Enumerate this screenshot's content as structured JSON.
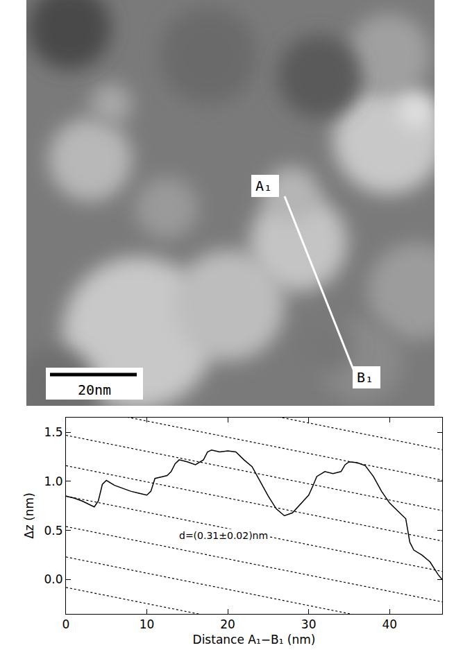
{
  "image": {
    "start_label": "A₁",
    "end_label": "B₁",
    "scale_bar": "20nm"
  },
  "chart_data": {
    "type": "line",
    "xlabel": "Distance A₁−B₁ (nm)",
    "ylabel": "Δz (nm)",
    "xlim": [
      0,
      46.5
    ],
    "ylim": [
      -0.35,
      1.65
    ],
    "xticks": [
      0,
      10,
      20,
      30,
      40
    ],
    "yticks": [
      {
        "value": 0,
        "label": "0.0"
      },
      0.5,
      {
        "value": 1,
        "label": "1.0"
      },
      1.5
    ],
    "grid": false,
    "series": [
      {
        "color": "#000000",
        "line_style": "solid",
        "x": [
          0,
          1,
          2,
          3,
          3.5,
          4,
          4.5,
          5,
          6,
          7,
          8,
          9,
          10,
          10.5,
          11,
          12,
          12.5,
          13,
          13.5,
          14,
          15,
          16,
          17,
          17.5,
          18,
          19,
          20,
          21,
          21.5,
          22,
          23,
          24,
          24.5,
          25,
          26,
          27,
          28,
          29,
          30,
          30.5,
          31,
          32,
          33,
          34,
          34.5,
          35,
          36,
          37,
          38,
          39,
          40,
          41,
          42,
          42.5,
          43,
          44,
          45,
          46,
          46.5
        ],
        "values": [
          0.85,
          0.83,
          0.8,
          0.76,
          0.74,
          0.8,
          0.97,
          1.01,
          0.96,
          0.93,
          0.9,
          0.88,
          0.86,
          0.9,
          1.03,
          1.05,
          1.06,
          1.1,
          1.18,
          1.22,
          1.2,
          1.17,
          1.22,
          1.3,
          1.32,
          1.3,
          1.31,
          1.3,
          1.26,
          1.22,
          1.15,
          1.0,
          0.93,
          0.85,
          0.72,
          0.65,
          0.68,
          0.77,
          0.86,
          0.95,
          1.05,
          1.1,
          1.08,
          1.1,
          1.17,
          1.2,
          1.19,
          1.16,
          1.05,
          0.9,
          0.78,
          0.7,
          0.62,
          0.38,
          0.3,
          0.25,
          0.18,
          0.05,
          0.0
        ]
      }
    ],
    "guide_lines": {
      "color": "#000000",
      "line_style": "dotted",
      "lines": [
        {
          "x": [
            0,
            46.5
          ],
          "y": [
            2.09,
            1.323
          ]
        },
        {
          "x": [
            0,
            46.5
          ],
          "y": [
            1.78,
            1.013
          ]
        },
        {
          "x": [
            0,
            46.5
          ],
          "y": [
            1.47,
            0.703
          ]
        },
        {
          "x": [
            0,
            46.5
          ],
          "y": [
            1.16,
            0.393
          ]
        },
        {
          "x": [
            0,
            46.5
          ],
          "y": [
            0.85,
            0.083
          ]
        },
        {
          "x": [
            0,
            46.5
          ],
          "y": [
            0.54,
            -0.227
          ]
        },
        {
          "x": [
            0,
            46.5
          ],
          "y": [
            0.23,
            -0.537
          ]
        },
        {
          "x": [
            0,
            46.5
          ],
          "y": [
            -0.08,
            -0.847
          ]
        }
      ]
    },
    "annotations": [
      {
        "text": "d=(0.31±0.02)nm",
        "x": 13.8,
        "y": 0.45
      }
    ]
  }
}
